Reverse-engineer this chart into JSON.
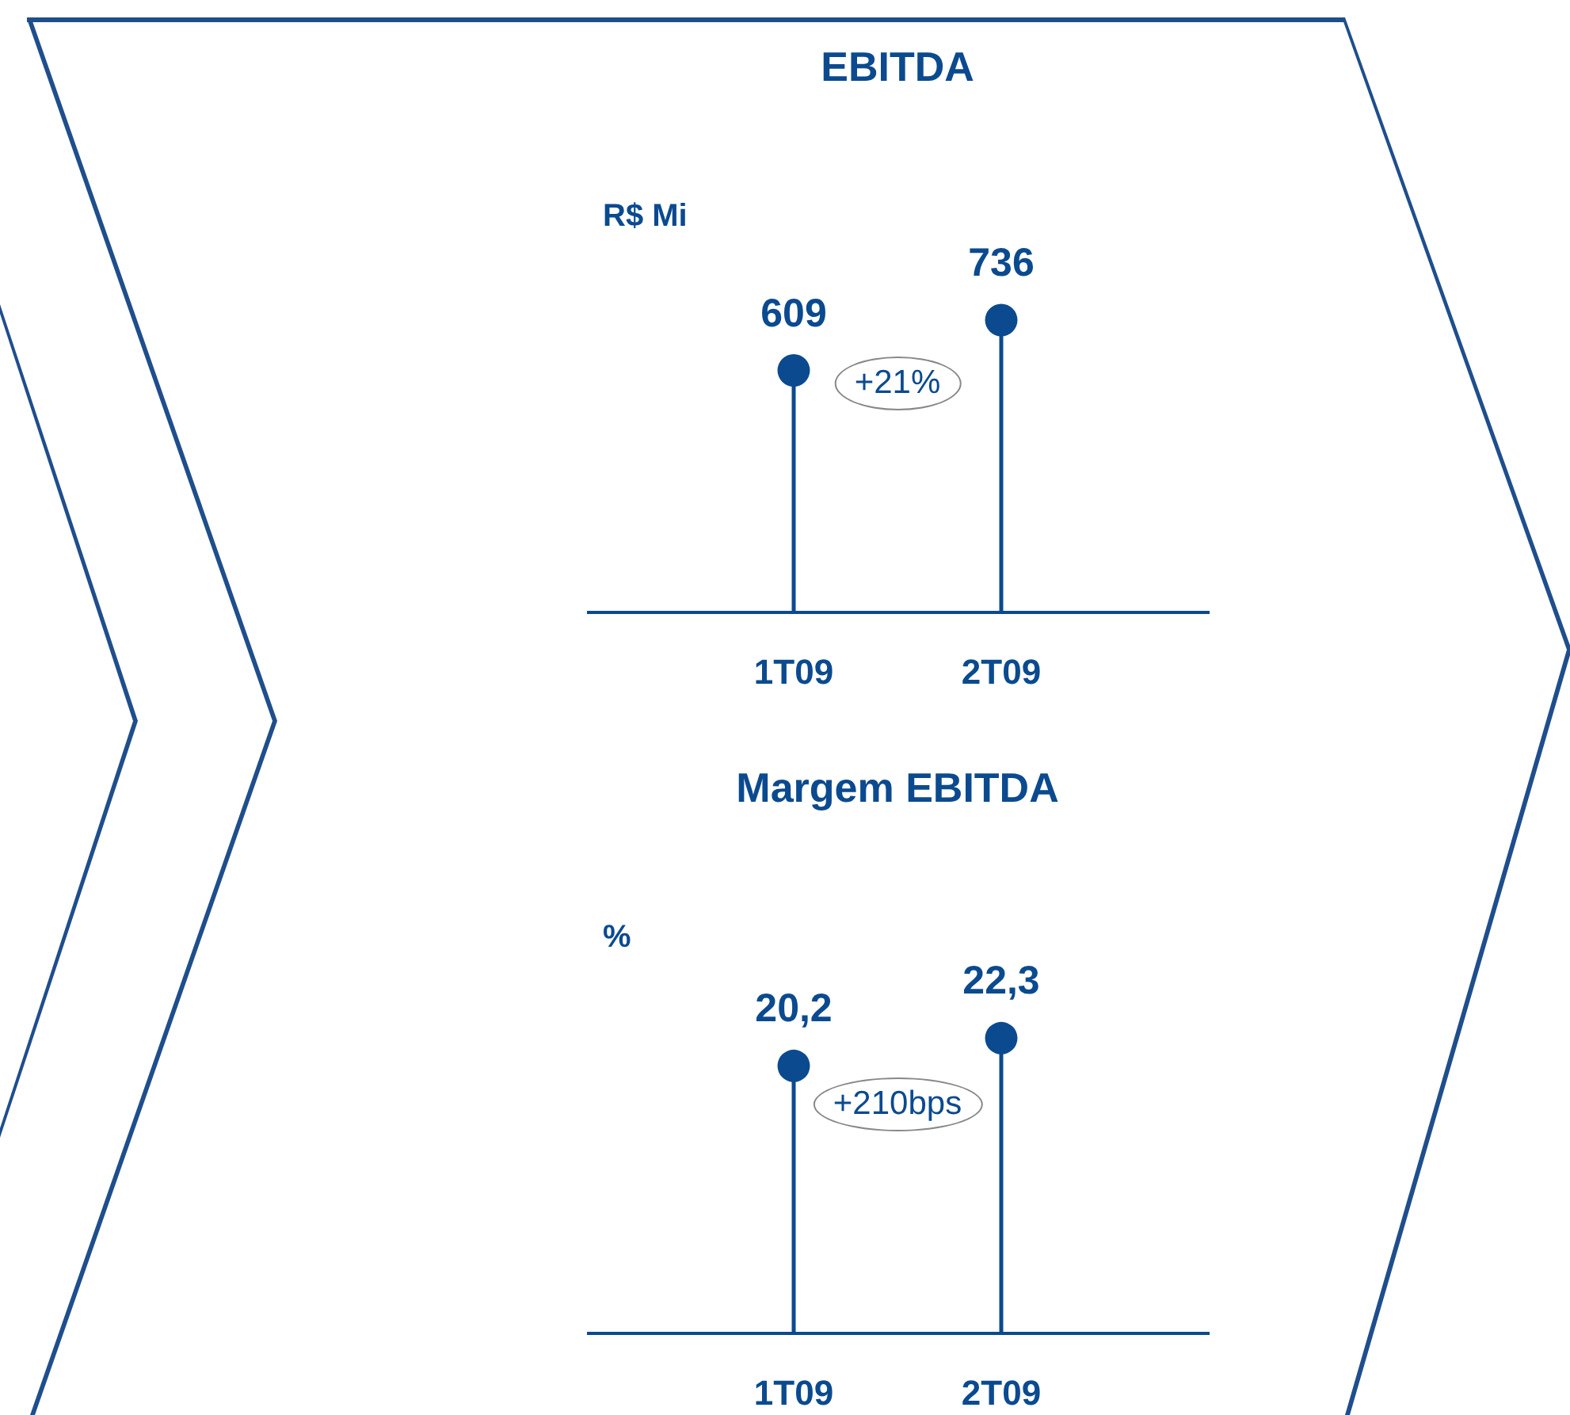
{
  "chart_data": [
    {
      "type": "lollipop",
      "title": "EBITDA",
      "ylabel": "R$ Mi",
      "categories": [
        "1T09",
        "2T09"
      ],
      "values": [
        609,
        736
      ],
      "color": "#0b4a8f",
      "marker": "circle",
      "data_labels": true,
      "annotations": [
        "+21%"
      ]
    },
    {
      "type": "lollipop",
      "title": "Margem EBITDA",
      "ylabel": "%",
      "categories": [
        "1T09",
        "2T09"
      ],
      "values": [
        20.2,
        22.3
      ],
      "value_labels": [
        "20,2",
        "22,3"
      ],
      "color": "#0b4a8f",
      "marker": "circle",
      "annotations": [
        "+210bps"
      ]
    }
  ]
}
